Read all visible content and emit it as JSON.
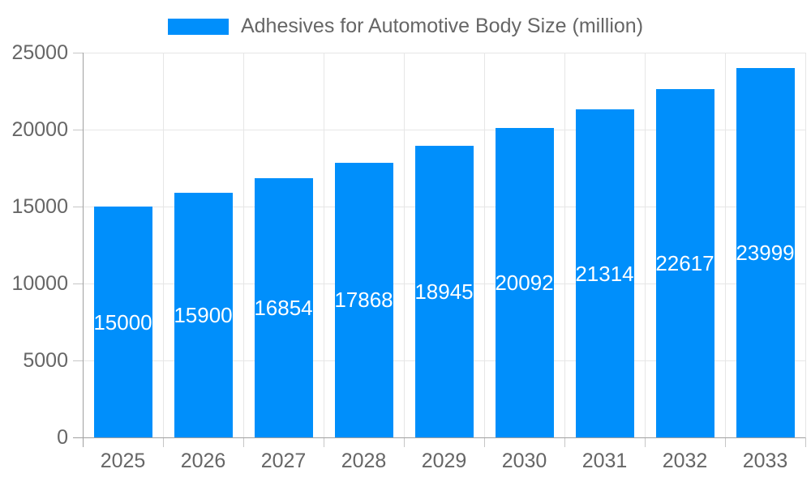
{
  "chart_data": {
    "type": "bar",
    "title": "Adhesives for Automotive Body Size (million)",
    "categories": [
      "2025",
      "2026",
      "2027",
      "2028",
      "2029",
      "2030",
      "2031",
      "2032",
      "2033"
    ],
    "values": [
      15000,
      15900,
      16854,
      17868,
      18945,
      20092,
      21314,
      22617,
      23999
    ],
    "xlabel": "",
    "ylabel": "",
    "ylim": [
      0,
      25000
    ],
    "yticks": [
      0,
      5000,
      10000,
      15000,
      20000,
      25000
    ],
    "grid": true,
    "legend_position": "top",
    "bar_color": "#008FFB",
    "bar_value_label_color": "#FFFFFF",
    "axis_text_color": "#666666",
    "grid_color": "#E6E6E6",
    "axis_line_color": "#A0A0A0",
    "tick_color": "#C6C6C6",
    "background_color": "#FFFFFF"
  }
}
